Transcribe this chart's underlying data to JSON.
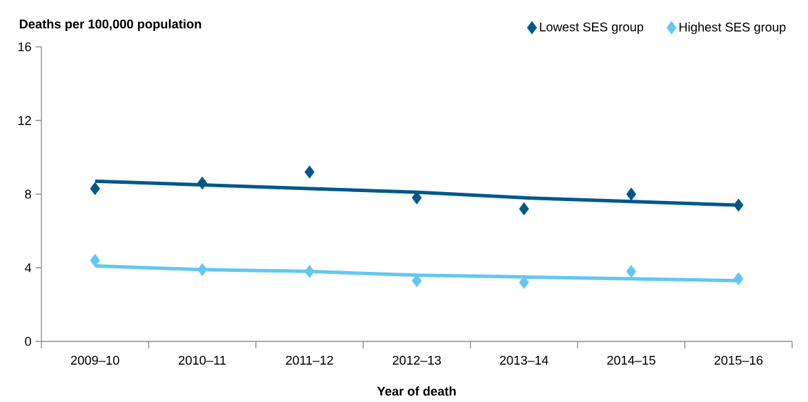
{
  "chart_data": {
    "type": "scatter",
    "ylabel": "Deaths per 100,000 population",
    "xlabel": "Year of death",
    "categories": [
      "2009–10",
      "2010–11",
      "2011–12",
      "2012–13",
      "2013–14",
      "2014–15",
      "2015–16"
    ],
    "ylim": [
      0,
      16
    ],
    "yticks": [
      0,
      4,
      8,
      12,
      16
    ],
    "grid": false,
    "legend": "top right",
    "marker": "diamond",
    "series": [
      {
        "name": "Lowest SES group",
        "color": "#00578a",
        "values": [
          8.3,
          8.6,
          9.2,
          7.8,
          7.2,
          8.0,
          7.4
        ]
      },
      {
        "name": "Highest SES group",
        "color": "#63c7f2",
        "values": [
          4.4,
          3.9,
          3.8,
          3.3,
          3.2,
          3.8,
          3.4
        ]
      },
      {
        "type": "line",
        "marker": "none",
        "color": "#00578a",
        "values": [
          8.7,
          8.5,
          8.3,
          8.1,
          7.8,
          7.6,
          7.4
        ]
      },
      {
        "type": "line",
        "marker": "none",
        "color": "#63c7f2",
        "values": [
          4.1,
          3.9,
          3.8,
          3.6,
          3.5,
          3.4,
          3.3
        ]
      }
    ]
  }
}
